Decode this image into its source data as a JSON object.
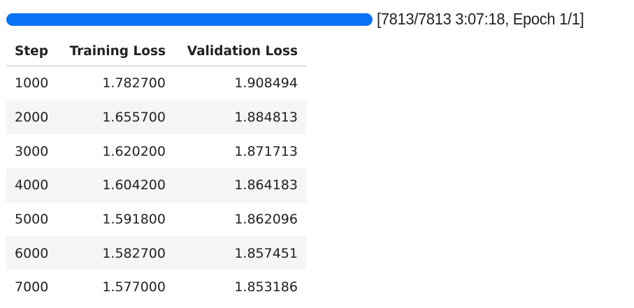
{
  "progress": {
    "current": 7813,
    "total": 7813,
    "fraction": 1.0,
    "text": "[7813/7813 3:07:18, Epoch 1/1]",
    "color": "#0a72f5"
  },
  "table": {
    "headers": [
      "Step",
      "Training Loss",
      "Validation Loss"
    ],
    "rows": [
      [
        "1000",
        "1.782700",
        "1.908494"
      ],
      [
        "2000",
        "1.655700",
        "1.884813"
      ],
      [
        "3000",
        "1.620200",
        "1.871713"
      ],
      [
        "4000",
        "1.604200",
        "1.864183"
      ],
      [
        "5000",
        "1.591800",
        "1.862096"
      ],
      [
        "6000",
        "1.582700",
        "1.857451"
      ],
      [
        "7000",
        "1.577000",
        "1.853186"
      ]
    ]
  }
}
